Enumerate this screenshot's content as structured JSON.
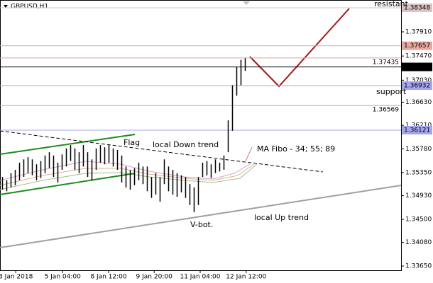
{
  "chart_data": {
    "type": "hilo",
    "title": "GBPUSD,H1",
    "color": "#000000",
    "high": [
      1.3527,
      1.3521,
      1.3534,
      1.354,
      1.3553,
      1.3559,
      1.3563,
      1.3559,
      1.355,
      1.3556,
      1.3566,
      1.3572,
      1.3566,
      1.3553,
      1.3568,
      1.3579,
      1.3585,
      1.3579,
      1.3572,
      1.3585,
      1.3572,
      1.3559,
      1.3579,
      1.3585,
      1.3581,
      1.3585,
      1.3579,
      1.3576,
      1.3566,
      1.3546,
      1.354,
      1.3543,
      1.3553,
      1.3546,
      1.3546,
      1.3527,
      1.3534,
      1.3527,
      1.3559,
      1.3546,
      1.354,
      1.3534,
      1.353,
      1.3527,
      1.3514,
      1.3508,
      1.3527,
      1.3553,
      1.3556,
      1.355,
      1.3559,
      1.3553,
      1.3566,
      1.363,
      1.3694,
      1.3727,
      1.374,
      1.3743
    ],
    "low": [
      1.3504,
      1.3501,
      1.3508,
      1.3512,
      1.3521,
      1.3527,
      1.3534,
      1.353,
      1.3521,
      1.3525,
      1.3534,
      1.3543,
      1.3527,
      1.3517,
      1.354,
      1.3546,
      1.3556,
      1.354,
      1.3534,
      1.3546,
      1.3527,
      1.3521,
      1.354,
      1.3553,
      1.355,
      1.3553,
      1.3546,
      1.354,
      1.3517,
      1.3508,
      1.3504,
      1.3512,
      1.3521,
      1.3514,
      1.3501,
      1.3489,
      1.3495,
      1.3482,
      1.3514,
      1.3501,
      1.3495,
      1.3491,
      1.3499,
      1.3489,
      1.3476,
      1.3463,
      1.3476,
      1.3527,
      1.353,
      1.3525,
      1.3534,
      1.3537,
      1.354,
      1.3572,
      1.3611,
      1.3675,
      1.3694,
      1.372
    ],
    "xlim": [
      -0.5,
      93.67
    ],
    "xticks": [
      {
        "value": 3.2,
        "label": "3 Jan 2018"
      },
      {
        "value": 14.2,
        "label": "5 Jan 04:00"
      },
      {
        "value": 25,
        "label": "8 Jan 12:00"
      },
      {
        "value": 35.7,
        "label": "9 Jan 20:00"
      },
      {
        "value": 46.5,
        "label": "11 Jan 04:00"
      },
      {
        "value": 57.3,
        "label": "12 Jan 12:00"
      }
    ],
    "ylim": [
      1.33573,
      1.38489
    ],
    "yticks": [
      {
        "value": 1.3791,
        "label": "1.37910"
      },
      {
        "value": 1.3747,
        "label": "1.37470"
      },
      {
        "value": 1.3703,
        "label": "1.37030"
      },
      {
        "value": 1.3663,
        "label": "1.36630"
      },
      {
        "value": 1.3621,
        "label": "1.36210"
      },
      {
        "value": 1.3578,
        "label": "1.35780"
      },
      {
        "value": 1.3535,
        "label": "1.35350"
      },
      {
        "value": 1.3493,
        "label": "1.34930"
      },
      {
        "value": 1.345,
        "label": "1.34500"
      },
      {
        "value": 1.3408,
        "label": "1.34080"
      },
      {
        "value": 1.3365,
        "label": "1.33650"
      }
    ],
    "levels": [
      {
        "value": 1.38348,
        "style": "box",
        "color": "#d9c3c3"
      },
      {
        "value": 1.37657,
        "style": "box",
        "color": "#e8a8a0"
      },
      {
        "value": 1.37435,
        "style": "text",
        "color": "#d7a8a0"
      },
      {
        "value": 1.37272,
        "style": "box",
        "color": "#000000"
      },
      {
        "value": 1.36932,
        "style": "box",
        "color": "#a6a6f0"
      },
      {
        "value": 1.36569,
        "style": "text",
        "color": "#a6a6f0"
      },
      {
        "value": 1.36121,
        "style": "box",
        "color": "#a6a6f0"
      }
    ],
    "annotations": [
      {
        "text": "resistant",
        "color": "#e0b8b8"
      },
      {
        "text": "support",
        "color": "#a0a0e8"
      },
      {
        "text": "Flag",
        "color": "#2e8b2e"
      },
      {
        "text": "local Down trend",
        "color": "#7f8c99"
      },
      {
        "text": "MA Fibo - 34; 55; 89",
        "color": "#d07aa8"
      },
      {
        "text": "V-bot.",
        "color": "#2e7d2e"
      },
      {
        "text": "local  Up trend",
        "color": "#808890"
      }
    ]
  }
}
